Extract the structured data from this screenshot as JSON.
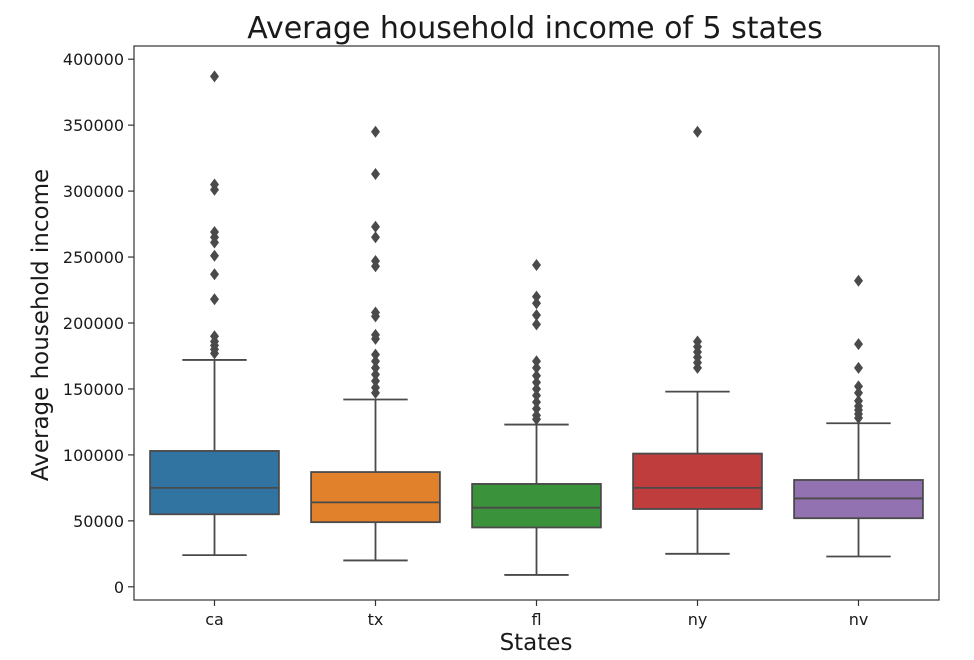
{
  "chart_data": {
    "type": "box",
    "title": "Average household income of 5 states",
    "xlabel": "States",
    "ylabel": "Average household income",
    "ylim": [
      -10000,
      410000
    ],
    "yticks": [
      0,
      50000,
      100000,
      150000,
      200000,
      250000,
      300000,
      350000,
      400000
    ],
    "categories": [
      "ca",
      "tx",
      "fl",
      "ny",
      "nv"
    ],
    "boxes": [
      {
        "category": "ca",
        "color": "#3274a1",
        "whisker_low": 24000,
        "q1": 55000,
        "median": 75000,
        "q3": 103000,
        "whisker_high": 172000,
        "outliers": [
          387000,
          305000,
          301000,
          269000,
          265000,
          261000,
          251000,
          237000,
          218000,
          190000,
          186000,
          183000,
          180000,
          177000
        ]
      },
      {
        "category": "tx",
        "color": "#e1812c",
        "whisker_low": 20000,
        "q1": 49000,
        "median": 64000,
        "q3": 87000,
        "whisker_high": 142000,
        "outliers": [
          345000,
          313000,
          273000,
          265000,
          247000,
          243000,
          208000,
          205000,
          191000,
          188000,
          176000,
          171000,
          166000,
          161000,
          156000,
          151000,
          147000
        ]
      },
      {
        "category": "fl",
        "color": "#3a923a",
        "whisker_low": 9000,
        "q1": 45000,
        "median": 60000,
        "q3": 78000,
        "whisker_high": 123000,
        "outliers": [
          244000,
          220000,
          215000,
          206000,
          199000,
          171000,
          166000,
          160000,
          155000,
          150000,
          145000,
          140000,
          135000,
          130000,
          127000
        ]
      },
      {
        "category": "ny",
        "color": "#c03d3e",
        "whisker_low": 25000,
        "q1": 59000,
        "median": 75000,
        "q3": 101000,
        "whisker_high": 148000,
        "outliers": [
          345000,
          186000,
          182000,
          178000,
          174000,
          170000,
          166000
        ]
      },
      {
        "category": "nv",
        "color": "#9372b2",
        "whisker_low": 23000,
        "q1": 52000,
        "median": 67000,
        "q3": 81000,
        "whisker_high": 124000,
        "outliers": [
          232000,
          184000,
          166000,
          152000,
          147000,
          141000,
          137000,
          134000,
          131000,
          128000
        ]
      }
    ]
  }
}
